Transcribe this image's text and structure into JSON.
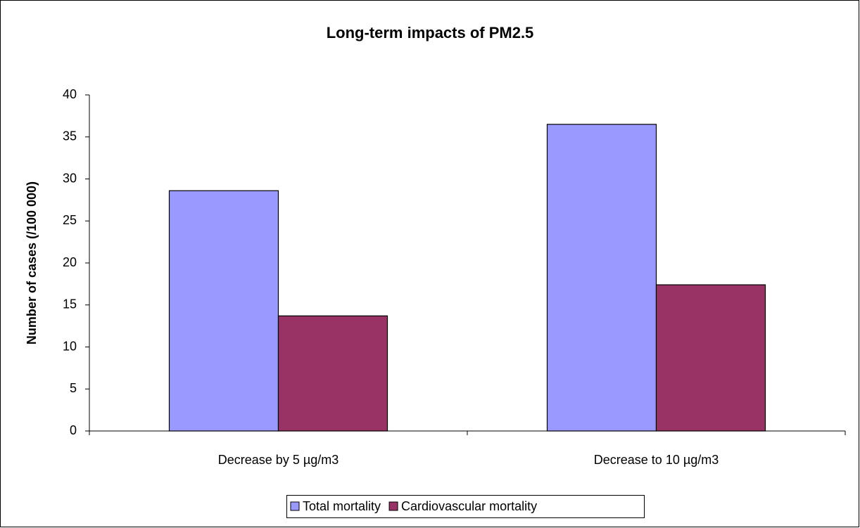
{
  "chart_data": {
    "type": "bar",
    "title": "Long-term impacts of PM2.5",
    "ylabel": "Number of cases (/100 000)",
    "categories": [
      "Decrease by 5 µg/m3",
      "Decrease to 10 µg/m3"
    ],
    "series": [
      {
        "name": "Total mortality",
        "color": "#9999ff",
        "values": [
          28.6,
          36.5
        ]
      },
      {
        "name": "Cardiovascular mortality",
        "color": "#993366",
        "values": [
          13.7,
          17.4
        ]
      }
    ],
    "ylim": [
      0,
      40
    ],
    "yticks": [
      0,
      5,
      10,
      15,
      20,
      25,
      30,
      35,
      40
    ],
    "legend": "bottom"
  }
}
